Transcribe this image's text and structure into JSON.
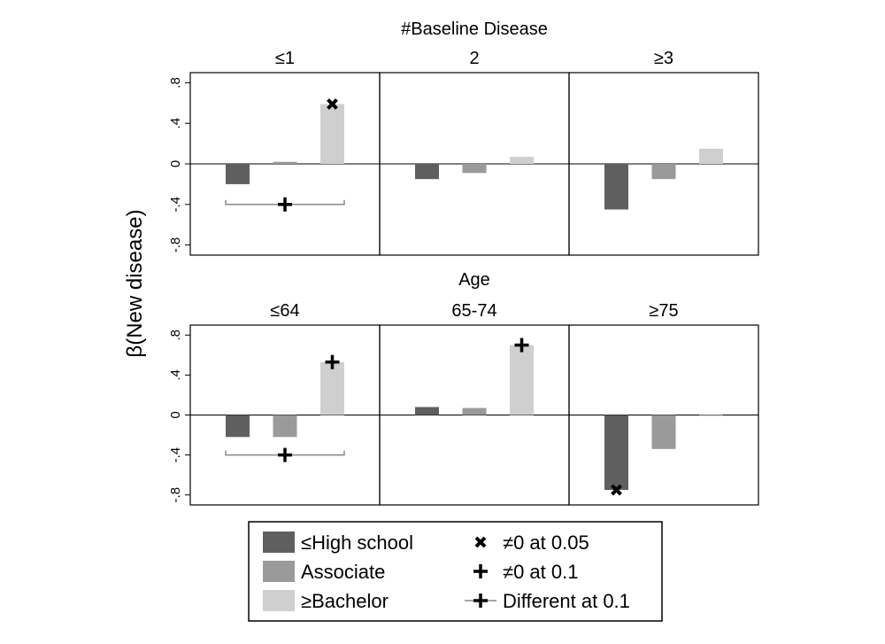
{
  "chart_data": {
    "type": "bar",
    "ylabel": "β(New disease)",
    "ylim": [
      -0.9,
      0.9
    ],
    "yticks": [
      0.8,
      0.4,
      0,
      -0.4,
      -0.8
    ],
    "ytick_labels": [
      ".8",
      ".4",
      "0",
      "-.4",
      "-.8"
    ],
    "grid": false,
    "legend_position": "bottom",
    "colors": {
      "high_school": "#5f5f5f",
      "associate": "#9a9a9a",
      "bachelor": "#cfcfcf",
      "frame": "#000000",
      "bracket": "#888888"
    },
    "series": [
      {
        "name": "≤High school",
        "key": "high_school"
      },
      {
        "name": "Associate",
        "key": "associate"
      },
      {
        "name": "≥Bachelor",
        "key": "bachelor"
      }
    ],
    "markers_legend": [
      {
        "symbol": "x-marker",
        "label": "≠0 at 0.05"
      },
      {
        "symbol": "plus-marker",
        "label": "≠0 at 0.1"
      },
      {
        "symbol": "bracket-plus-marker",
        "label": "Different at 0.1"
      }
    ],
    "rows": [
      {
        "title": "#Baseline Disease",
        "panels": [
          {
            "label": "≤1",
            "values": [
              -0.2,
              0.02,
              0.59
            ],
            "markers": [
              null,
              null,
              "x"
            ],
            "difference": {
              "from": 0,
              "to": 2,
              "y": -0.4
            }
          },
          {
            "label": "2",
            "values": [
              -0.15,
              -0.09,
              0.07
            ],
            "markers": [
              null,
              null,
              null
            ],
            "difference": null
          },
          {
            "label": "≥3",
            "values": [
              -0.45,
              -0.15,
              0.15
            ],
            "markers": [
              null,
              null,
              null
            ],
            "difference": null
          }
        ]
      },
      {
        "title": "Age",
        "panels": [
          {
            "label": "≤64",
            "values": [
              -0.22,
              -0.22,
              0.53
            ],
            "markers": [
              null,
              null,
              "plus"
            ],
            "difference": {
              "from": 0,
              "to": 2,
              "y": -0.4
            }
          },
          {
            "label": "65-74",
            "values": [
              0.08,
              0.07,
              0.7
            ],
            "markers": [
              null,
              null,
              "plus"
            ],
            "difference": null
          },
          {
            "label": "≥75",
            "values": [
              -0.75,
              -0.34,
              -0.01
            ],
            "markers": [
              "x",
              null,
              null
            ],
            "difference": null
          }
        ]
      }
    ]
  }
}
